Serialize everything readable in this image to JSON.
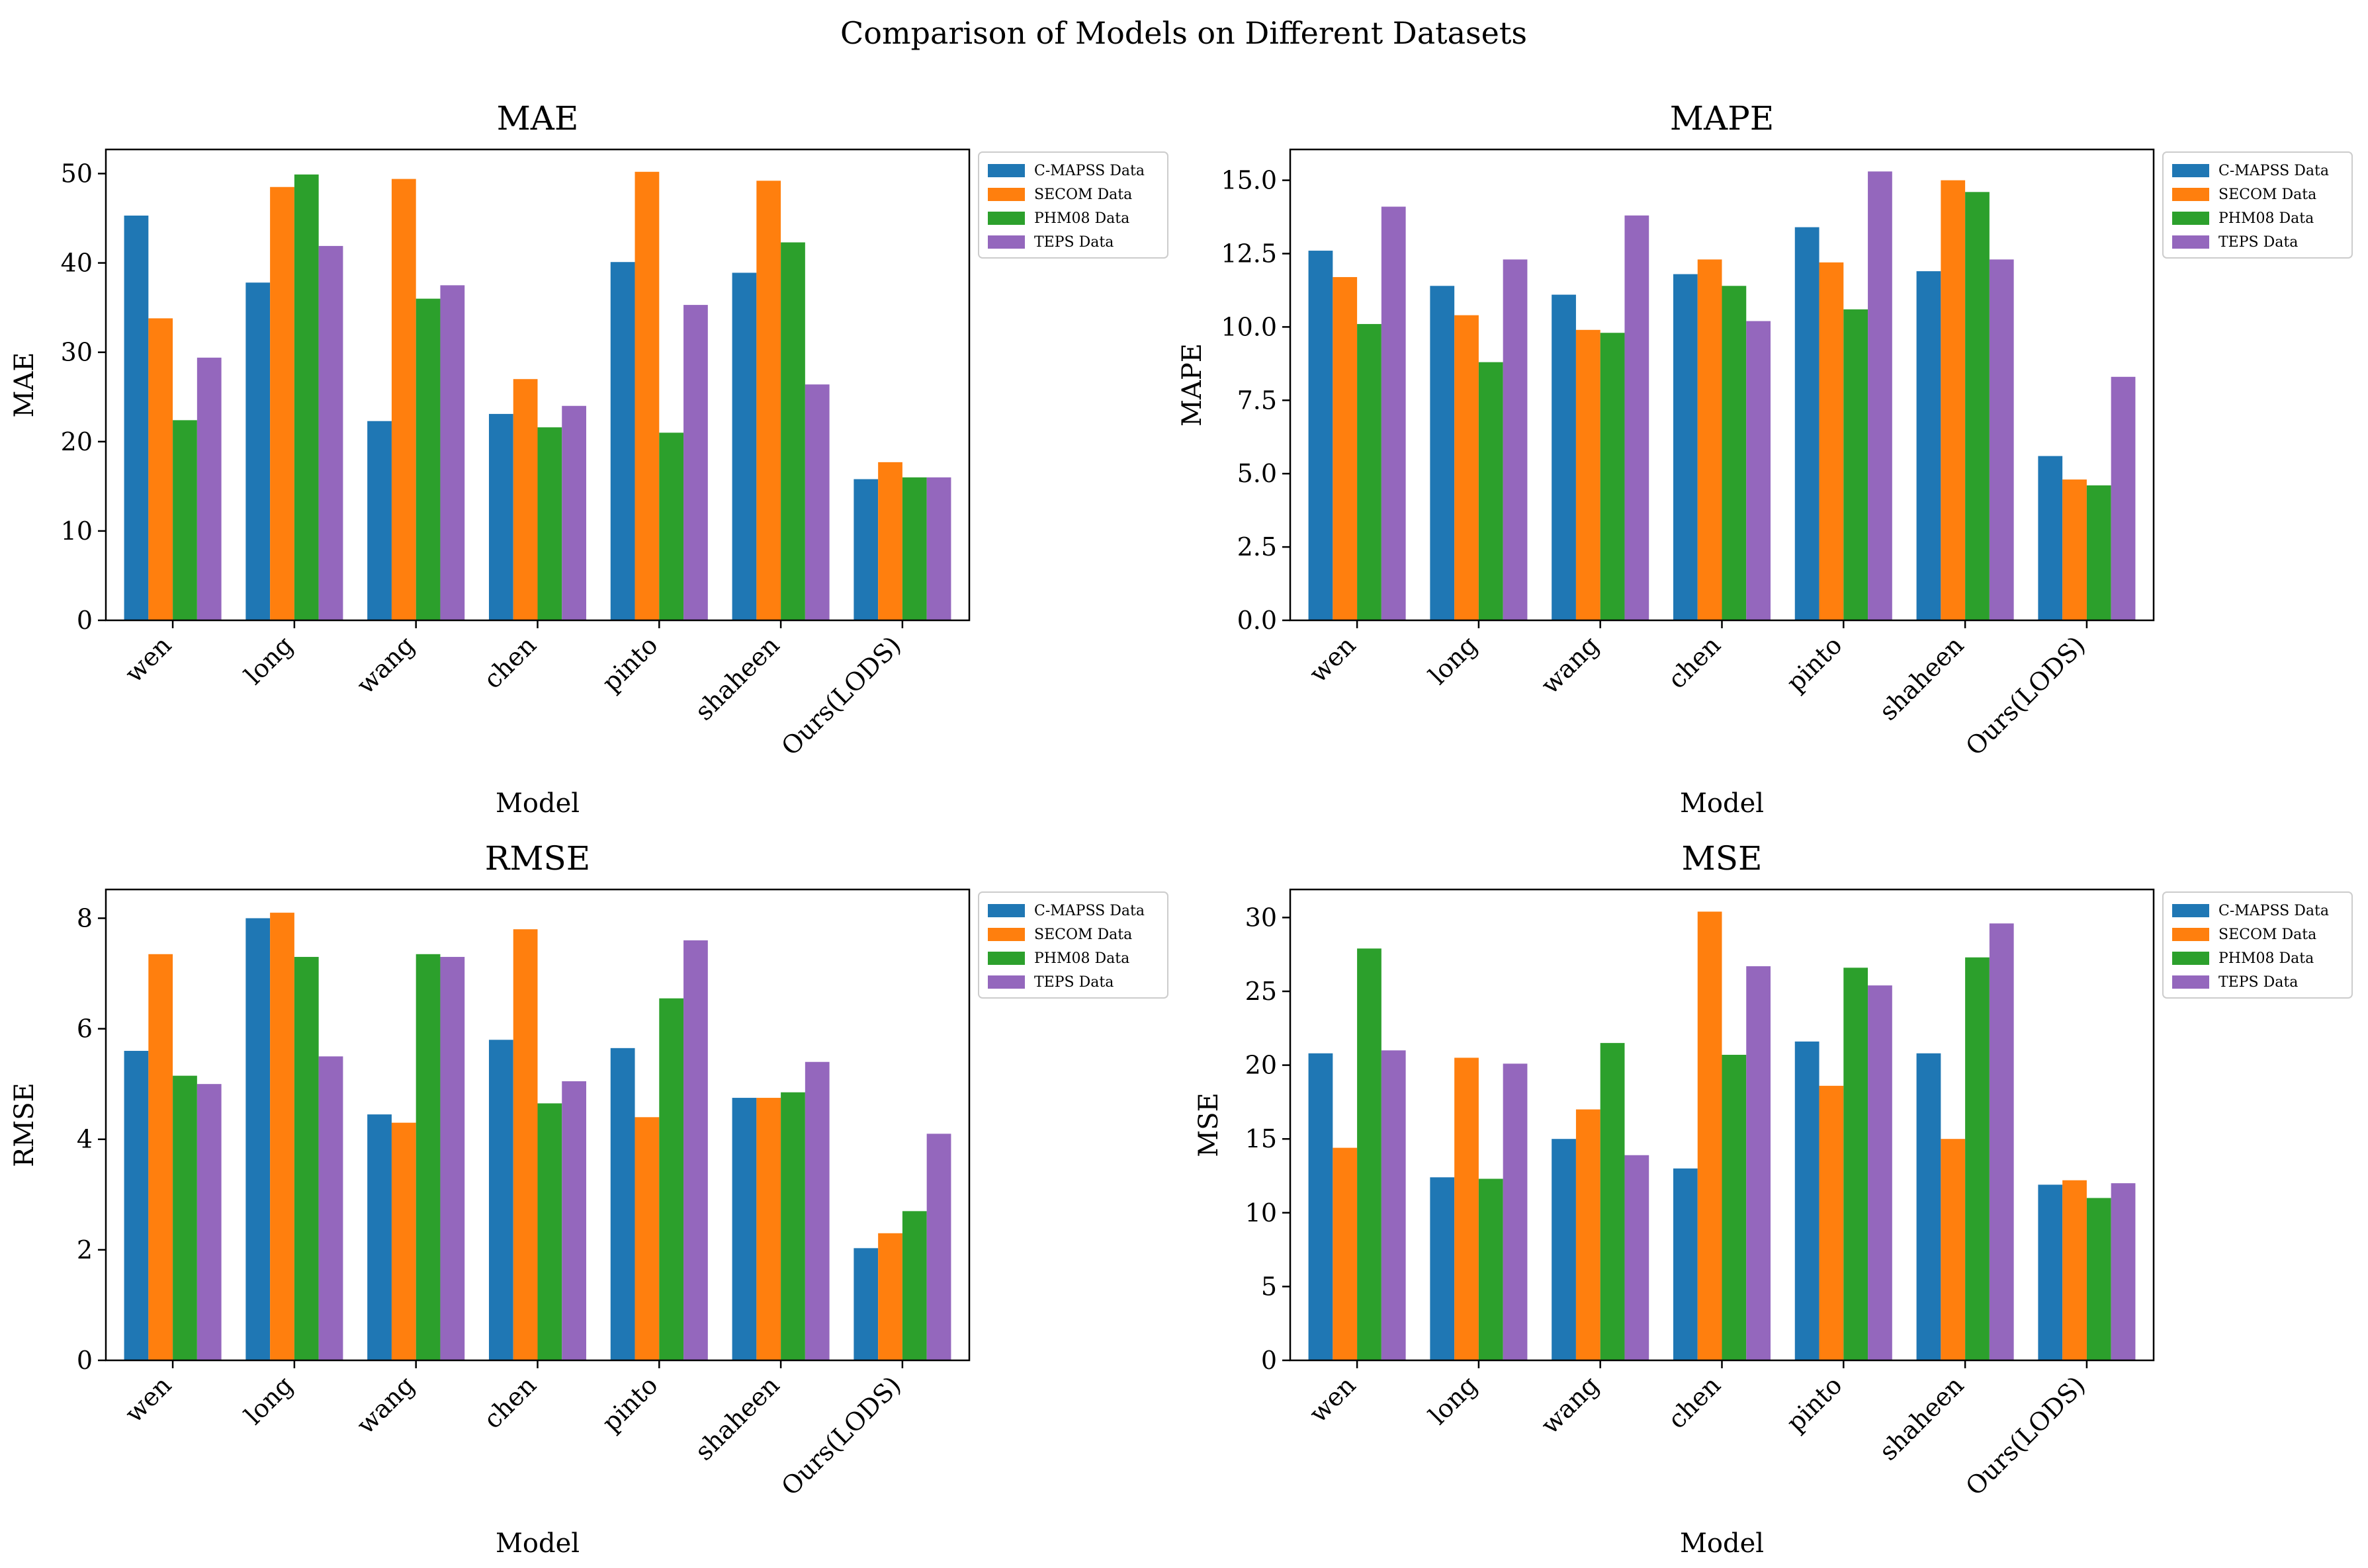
{
  "figure_title": "Comparison of Models on Different Datasets",
  "colors": {
    "C-MAPSS Data": "#1f77b4",
    "SECOM Data": "#ff7f0e",
    "PHM08 Data": "#2ca02c",
    "TEPS Data": "#9467bd"
  },
  "chart_data": [
    {
      "type": "bar",
      "title": "MAE",
      "xlabel": "Model",
      "ylabel": "MAE",
      "categories": [
        "wen",
        "long",
        "wang",
        "chen",
        "pinto",
        "shaheen",
        "Ours(LODS)"
      ],
      "ylim": [
        0,
        52.7
      ],
      "yticks": [
        "0",
        "10",
        "20",
        "30",
        "40",
        "50"
      ],
      "legend_position": "outside right, upper",
      "series": [
        {
          "name": "C-MAPSS Data",
          "values": [
            45.3,
            37.8,
            22.3,
            23.1,
            40.1,
            38.9,
            15.8
          ]
        },
        {
          "name": "SECOM Data",
          "values": [
            33.8,
            48.5,
            49.4,
            27.0,
            50.2,
            49.2,
            17.7
          ]
        },
        {
          "name": "PHM08 Data",
          "values": [
            22.4,
            49.9,
            36.0,
            21.6,
            21.0,
            42.3,
            16.0
          ]
        },
        {
          "name": "TEPS Data",
          "values": [
            29.4,
            41.9,
            37.5,
            24.0,
            35.3,
            26.4,
            16.0
          ]
        }
      ]
    },
    {
      "type": "bar",
      "title": "MAPE",
      "xlabel": "Model",
      "ylabel": "MAPE",
      "categories": [
        "wen",
        "long",
        "wang",
        "chen",
        "pinto",
        "shaheen",
        "Ours(LODS)"
      ],
      "ylim": [
        0,
        16.05
      ],
      "yticks": [
        "0.0",
        "2.5",
        "5.0",
        "7.5",
        "10.0",
        "12.5",
        "15.0"
      ],
      "legend_position": "outside right, upper",
      "series": [
        {
          "name": "C-MAPSS Data",
          "values": [
            12.6,
            11.4,
            11.1,
            11.8,
            13.4,
            11.9,
            5.6
          ]
        },
        {
          "name": "SECOM Data",
          "values": [
            11.7,
            10.4,
            9.9,
            12.3,
            12.2,
            15.0,
            4.8
          ]
        },
        {
          "name": "PHM08 Data",
          "values": [
            10.1,
            8.8,
            9.8,
            11.4,
            10.6,
            14.6,
            4.6
          ]
        },
        {
          "name": "TEPS Data",
          "values": [
            14.1,
            12.3,
            13.8,
            10.2,
            15.3,
            12.3,
            8.3
          ]
        }
      ]
    },
    {
      "type": "bar",
      "title": "RMSE",
      "xlabel": "Model",
      "ylabel": "RMSE",
      "categories": [
        "wen",
        "long",
        "wang",
        "chen",
        "pinto",
        "shaheen",
        "Ours(LODS)"
      ],
      "ylim": [
        0,
        8.52
      ],
      "yticks": [
        "0",
        "2",
        "4",
        "6",
        "8"
      ],
      "legend_position": "outside right, upper",
      "series": [
        {
          "name": "C-MAPSS Data",
          "values": [
            5.6,
            8.0,
            4.45,
            5.8,
            5.65,
            4.75,
            2.03
          ]
        },
        {
          "name": "SECOM Data",
          "values": [
            7.35,
            8.1,
            4.3,
            7.8,
            4.4,
            4.75,
            2.3
          ]
        },
        {
          "name": "PHM08 Data",
          "values": [
            5.15,
            7.3,
            7.35,
            4.65,
            6.55,
            4.85,
            2.7
          ]
        },
        {
          "name": "TEPS Data",
          "values": [
            5.0,
            5.5,
            7.3,
            5.05,
            7.6,
            5.4,
            4.1
          ]
        }
      ]
    },
    {
      "type": "bar",
      "title": "MSE",
      "xlabel": "Model",
      "ylabel": "MSE",
      "categories": [
        "wen",
        "long",
        "wang",
        "chen",
        "pinto",
        "shaheen",
        "Ours(LODS)"
      ],
      "ylim": [
        0,
        31.9
      ],
      "yticks": [
        "0",
        "5",
        "10",
        "15",
        "20",
        "25",
        "30"
      ],
      "legend_position": "outside right, upper",
      "series": [
        {
          "name": "C-MAPSS Data",
          "values": [
            20.8,
            12.4,
            15.0,
            13.0,
            21.6,
            20.8,
            11.9
          ]
        },
        {
          "name": "SECOM Data",
          "values": [
            14.4,
            20.5,
            17.0,
            30.4,
            18.6,
            15.0,
            12.2
          ]
        },
        {
          "name": "PHM08 Data",
          "values": [
            27.9,
            12.3,
            21.5,
            20.7,
            26.6,
            27.3,
            11.0
          ]
        },
        {
          "name": "TEPS Data",
          "values": [
            21.0,
            20.1,
            13.9,
            26.7,
            25.4,
            29.6,
            12.0
          ]
        }
      ]
    }
  ]
}
